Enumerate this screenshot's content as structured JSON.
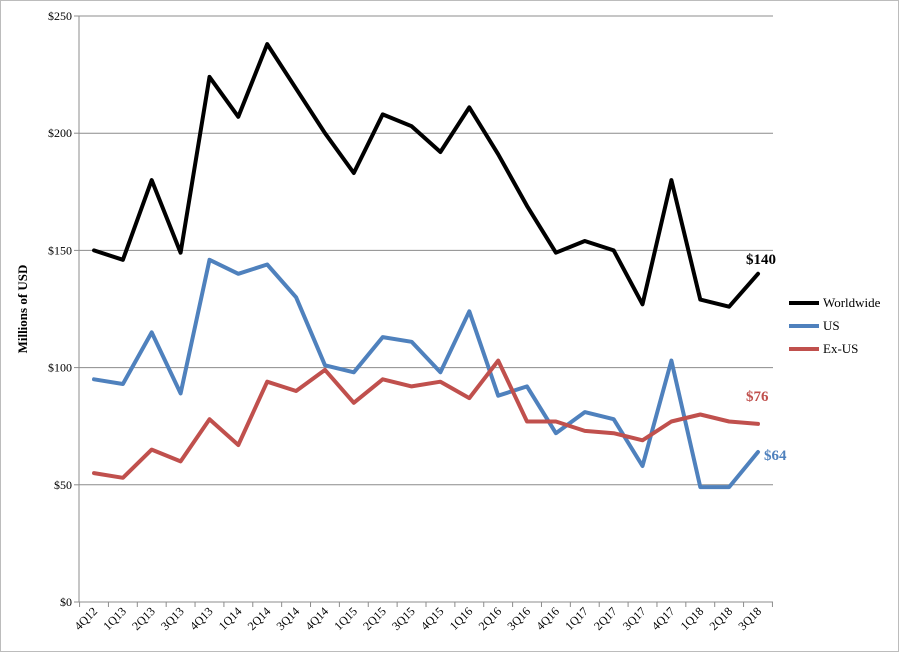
{
  "chart_data": {
    "type": "line",
    "ylabel": "Millions of USD",
    "xlabel": "",
    "title": "",
    "ylim": [
      0,
      250
    ],
    "y_ticks": [
      {
        "value": 0,
        "label": "$0"
      },
      {
        "value": 50,
        "label": "$50"
      },
      {
        "value": 100,
        "label": "$100"
      },
      {
        "value": 150,
        "label": "$150"
      },
      {
        "value": 200,
        "label": "$200"
      },
      {
        "value": 250,
        "label": "$250"
      }
    ],
    "grid": true,
    "legend_position": "right",
    "categories": [
      "4Q12",
      "1Q13",
      "2Q13",
      "3Q13",
      "4Q13",
      "1Q14",
      "2Q14",
      "3Q14",
      "4Q14",
      "1Q15",
      "2Q15",
      "3Q15",
      "4Q15",
      "1Q16",
      "2Q16",
      "3Q16",
      "4Q16",
      "1Q17",
      "2Q17",
      "3Q17",
      "4Q17",
      "1Q18",
      "2Q18",
      "3Q18"
    ],
    "series": [
      {
        "name": "Worldwide",
        "color": "#000000",
        "values": [
          150,
          146,
          180,
          149,
          224,
          207,
          238,
          219,
          200,
          183,
          208,
          203,
          192,
          211,
          191,
          169,
          149,
          154,
          150,
          127,
          180,
          129,
          126,
          140
        ],
        "end_label": "$140"
      },
      {
        "name": "US",
        "color": "#4f81bd",
        "values": [
          95,
          93,
          115,
          89,
          146,
          140,
          144,
          130,
          101,
          98,
          113,
          111,
          98,
          124,
          88,
          92,
          72,
          81,
          78,
          58,
          103,
          49,
          49,
          64
        ],
        "end_label": "$64"
      },
      {
        "name": "Ex-US",
        "color": "#c0504d",
        "values": [
          55,
          53,
          65,
          60,
          78,
          67,
          94,
          90,
          99,
          85,
          95,
          92,
          94,
          87,
          103,
          77,
          77,
          73,
          72,
          69,
          77,
          80,
          77,
          76
        ],
        "end_label": "$76"
      }
    ]
  }
}
